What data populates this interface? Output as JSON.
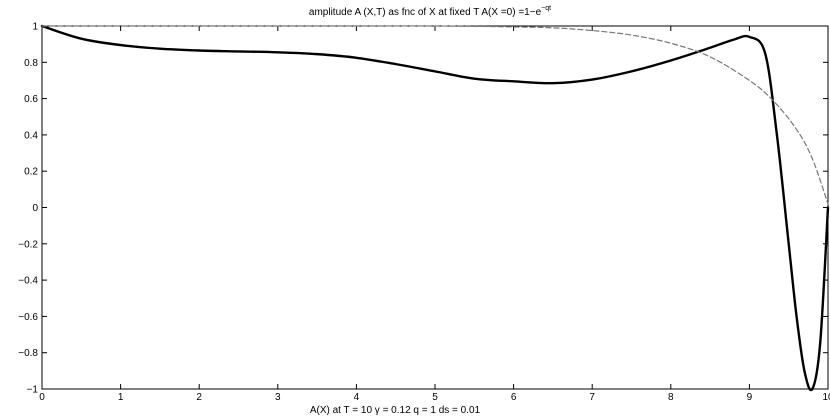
{
  "chart_data": {
    "type": "line",
    "title": {
      "prefix": "amplitude A (X,T) as fnc of X at fixed T    A(X =0) =1−e",
      "superscript": "−qt"
    },
    "xlabel": "A(X) at T = 10  γ = 0.12  q = 1  ds = 0.01",
    "ylabel": "",
    "xlim": [
      0,
      10
    ],
    "ylim": [
      -1,
      1
    ],
    "xticks": [
      0,
      1,
      2,
      3,
      4,
      5,
      6,
      7,
      8,
      9,
      10
    ],
    "yticks": [
      -1,
      -0.8,
      -0.6,
      -0.4,
      -0.2,
      0,
      0.2,
      0.4,
      0.6,
      0.8,
      1
    ],
    "xtick_labels": [
      "0",
      "1",
      "2",
      "3",
      "4",
      "5",
      "6",
      "7",
      "8",
      "9",
      "10"
    ],
    "ytick_labels": [
      "−1",
      "−0.8",
      "−0.6",
      "−0.4",
      "−0.2",
      "0",
      "0.2",
      "0.4",
      "0.6",
      "0.8",
      "1"
    ],
    "grid": false,
    "series": [
      {
        "style": "solid",
        "color": "#000000",
        "x": [
          0,
          0.5,
          1,
          1.5,
          2,
          2.5,
          3,
          3.5,
          4,
          4.5,
          5,
          5.5,
          6,
          6.5,
          7,
          7.5,
          8,
          8.5,
          8.8,
          9,
          9.2,
          9.35,
          9.5,
          9.6,
          9.7,
          9.8,
          9.9,
          10
        ],
        "y": [
          1,
          0.93,
          0.895,
          0.875,
          0.865,
          0.86,
          0.855,
          0.845,
          0.825,
          0.79,
          0.75,
          0.71,
          0.695,
          0.685,
          0.705,
          0.75,
          0.81,
          0.88,
          0.925,
          0.94,
          0.85,
          0.4,
          -0.2,
          -0.6,
          -0.9,
          -1.0,
          -0.75,
          0.0
        ]
      },
      {
        "style": "dashed",
        "color": "#777777",
        "x": [
          0,
          1,
          2,
          3,
          4,
          5,
          6,
          6.5,
          7,
          7.5,
          8,
          8.5,
          9,
          9.3,
          9.6,
          9.8,
          10
        ],
        "y": [
          1,
          1,
          1,
          1,
          1,
          1,
          0.995,
          0.99,
          0.975,
          0.95,
          0.905,
          0.83,
          0.7,
          0.59,
          0.43,
          0.27,
          0.02
        ]
      }
    ]
  }
}
